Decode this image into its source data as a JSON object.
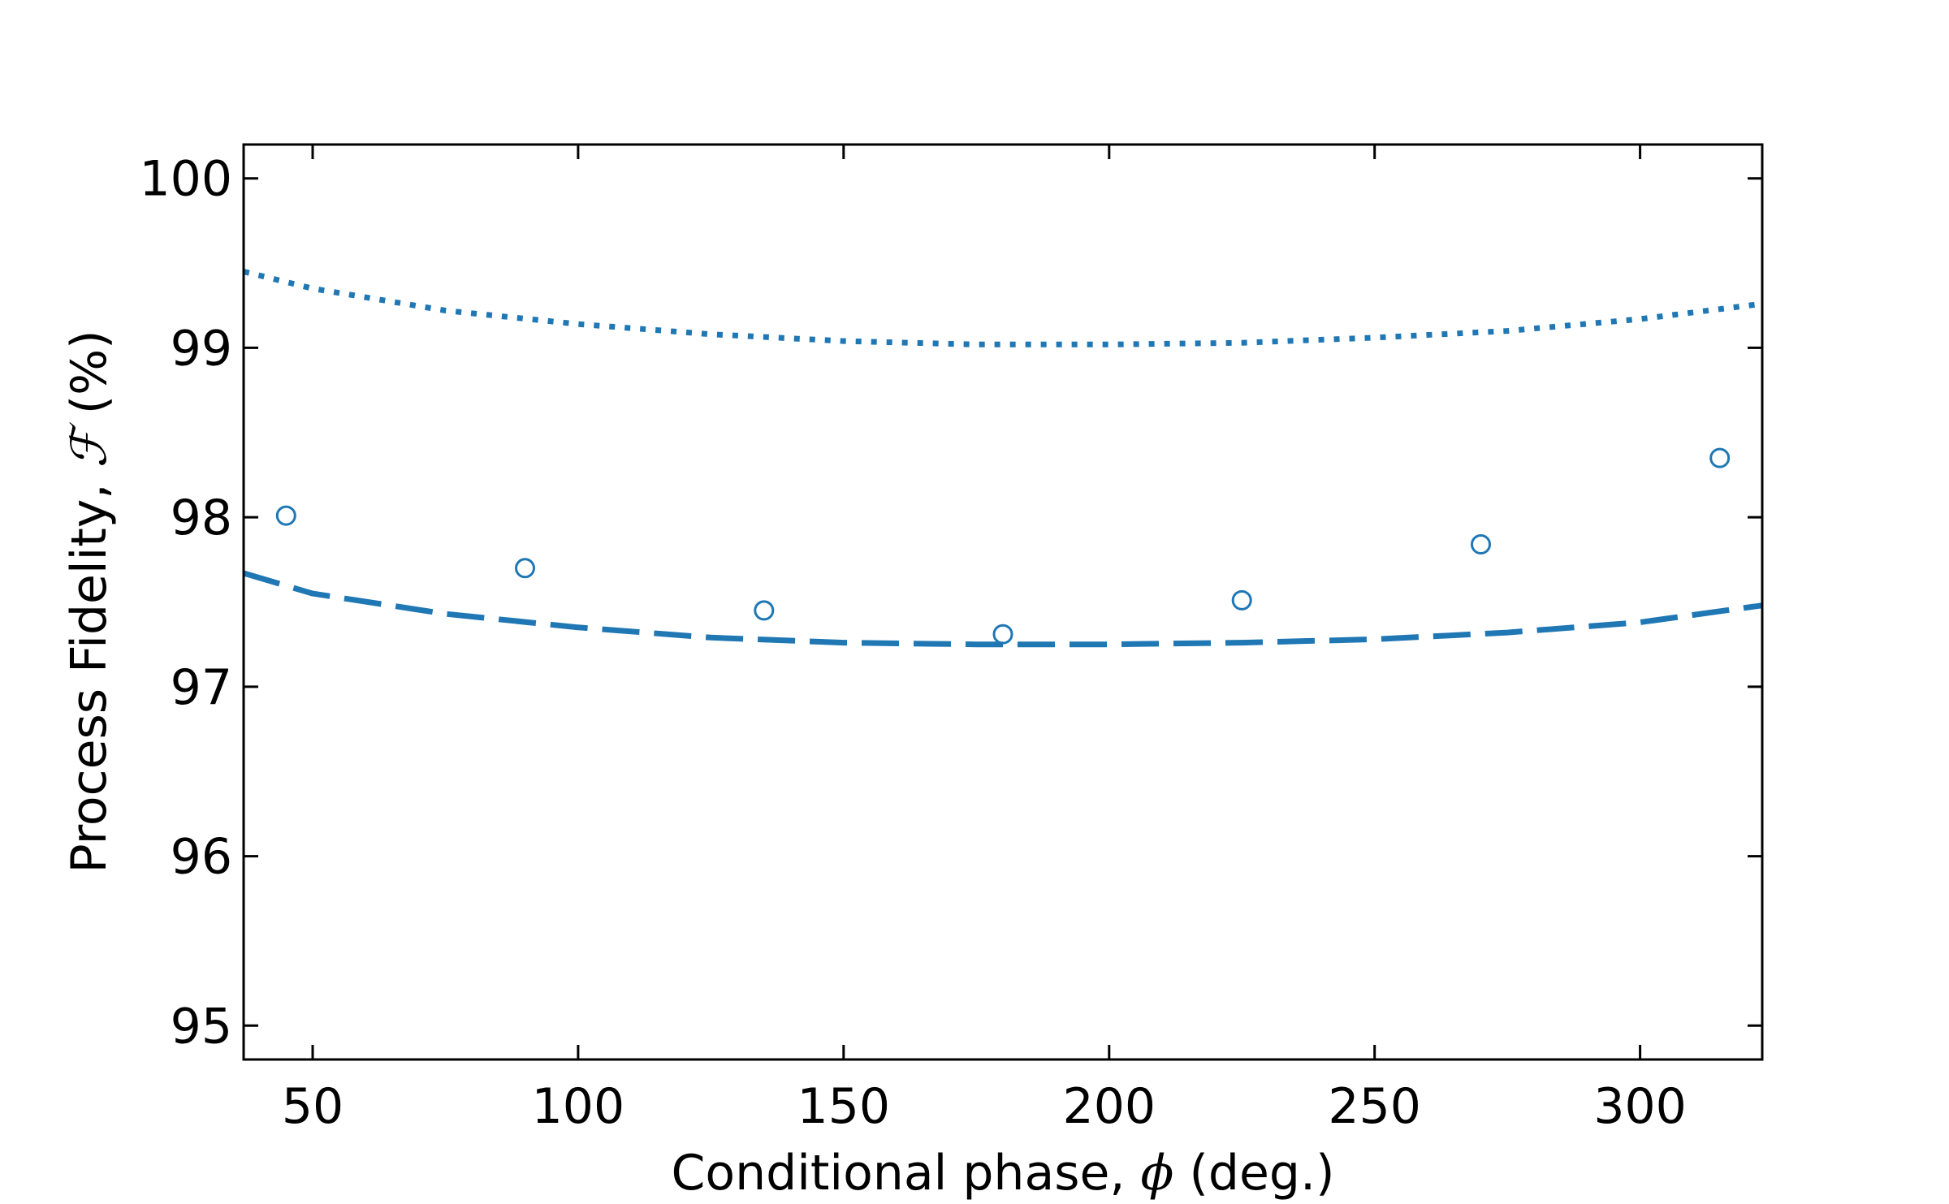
{
  "chart_data": {
    "type": "scatter",
    "xlabel": {
      "prefix": "Conditional phase, ",
      "symbol": "ϕ",
      "suffix": " (deg.)"
    },
    "ylabel": {
      "prefix": "Process Fidelity, ",
      "symbol": "ℱ",
      "suffix": " (%)"
    },
    "xlim": [
      37,
      323
    ],
    "ylim": [
      94.8,
      100.2
    ],
    "xticks": [
      50,
      100,
      150,
      200,
      250,
      300
    ],
    "yticks": [
      95,
      96,
      97,
      98,
      99,
      100
    ],
    "grid": false,
    "color": "#1f77b4",
    "series": [
      {
        "style": "markers",
        "x": [
          45,
          90,
          135,
          180,
          225,
          270,
          315
        ],
        "y": [
          98.01,
          97.7,
          97.45,
          97.31,
          97.51,
          97.84,
          98.35
        ]
      },
      {
        "style": "dotted-line",
        "x": [
          37,
          50,
          75,
          100,
          125,
          150,
          175,
          200,
          225,
          250,
          275,
          300,
          323
        ],
        "y": [
          99.45,
          99.35,
          99.22,
          99.14,
          99.08,
          99.04,
          99.02,
          99.02,
          99.03,
          99.06,
          99.1,
          99.17,
          99.26
        ]
      },
      {
        "style": "dashed-line",
        "x": [
          37,
          50,
          75,
          100,
          125,
          150,
          175,
          200,
          225,
          250,
          275,
          300,
          323
        ],
        "y": [
          97.67,
          97.55,
          97.43,
          97.35,
          97.29,
          97.26,
          97.25,
          97.25,
          97.26,
          97.28,
          97.32,
          97.38,
          97.48
        ]
      }
    ]
  }
}
